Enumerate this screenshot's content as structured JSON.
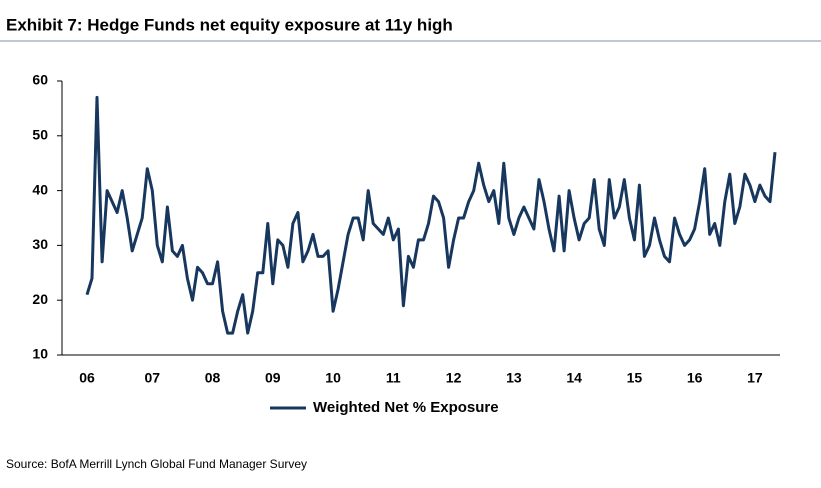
{
  "chart_data": {
    "type": "line",
    "title": "Exhibit 7: Hedge Funds net equity exposure at 11y high",
    "source": "Source: BofA Merrill Lynch Global Fund Manager Survey",
    "categories": [
      "06",
      null,
      null,
      null,
      null,
      null,
      null,
      null,
      null,
      null,
      null,
      null,
      null,
      "07",
      null,
      null,
      null,
      null,
      null,
      null,
      null,
      null,
      null,
      null,
      null,
      "08",
      null,
      null,
      null,
      null,
      null,
      null,
      null,
      null,
      null,
      null,
      null,
      "09",
      null,
      null,
      null,
      null,
      null,
      null,
      null,
      null,
      null,
      null,
      null,
      "10",
      null,
      null,
      null,
      null,
      null,
      null,
      null,
      null,
      null,
      null,
      null,
      "11",
      null,
      null,
      null,
      null,
      null,
      null,
      null,
      null,
      null,
      null,
      null,
      "12",
      null,
      null,
      null,
      null,
      null,
      null,
      null,
      null,
      null,
      null,
      null,
      "13",
      null,
      null,
      null,
      null,
      null,
      null,
      null,
      null,
      null,
      null,
      null,
      "14",
      null,
      null,
      null,
      null,
      null,
      null,
      null,
      null,
      null,
      null,
      null,
      "15",
      null,
      null,
      null,
      null,
      null,
      null,
      null,
      null,
      null,
      null,
      null,
      "16",
      null,
      null,
      null,
      null,
      null,
      null,
      null,
      null,
      null,
      null,
      null,
      "17",
      null,
      null,
      null,
      null
    ],
    "series": [
      {
        "name": "Weighted Net % Exposure",
        "color": "#17375e",
        "values": [
          21,
          24,
          57,
          27,
          40,
          38,
          36,
          40,
          35,
          29,
          32,
          35,
          44,
          40,
          30,
          27,
          37,
          29,
          28,
          30,
          24,
          20,
          26,
          25,
          23,
          23,
          27,
          18,
          14,
          14,
          18,
          21,
          14,
          18,
          25,
          25,
          34,
          23,
          31,
          30,
          26,
          34,
          36,
          27,
          29,
          32,
          28,
          28,
          29,
          18,
          22,
          27,
          32,
          35,
          35,
          31,
          40,
          34,
          33,
          32,
          35,
          31,
          33,
          19,
          28,
          26,
          31,
          31,
          34,
          39,
          38,
          35,
          26,
          31,
          35,
          35,
          38,
          40,
          45,
          41,
          38,
          40,
          34,
          45,
          35,
          32,
          35,
          37,
          35,
          33,
          42,
          38,
          33,
          29,
          39,
          29,
          40,
          35,
          31,
          34,
          35,
          42,
          33,
          30,
          42,
          35,
          37,
          42,
          35,
          31,
          41,
          28,
          30,
          35,
          31,
          28,
          27,
          35,
          32,
          30,
          31,
          33,
          38,
          44,
          32,
          34,
          30,
          38,
          43,
          34,
          37,
          43,
          41,
          38,
          41,
          39,
          38,
          47
        ]
      }
    ],
    "ylim": [
      10,
      60
    ],
    "yticks": [
      10,
      20,
      30,
      40,
      50,
      60
    ],
    "grid": false
  }
}
